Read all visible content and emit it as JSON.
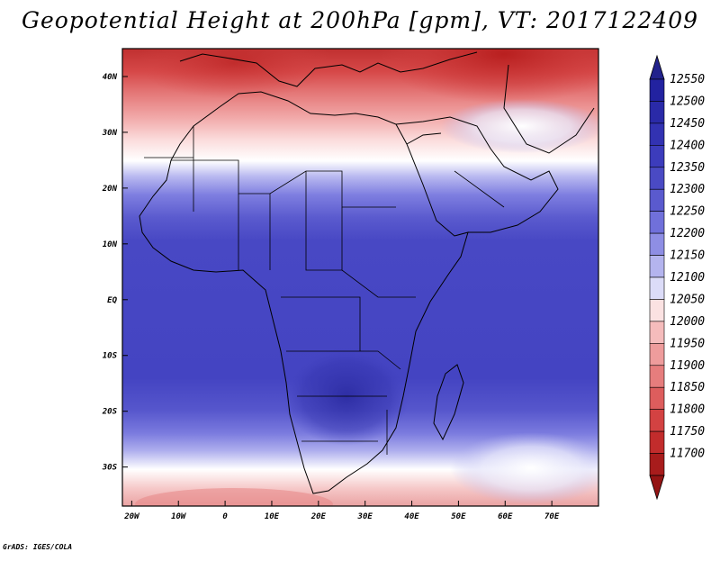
{
  "title": "Geopotential Height at 200hPa [gpm], VT: 2017122409",
  "credit": "GrADS: IGES/COLA",
  "map": {
    "lon_range": [
      -22,
      80
    ],
    "lat_range": [
      -37,
      45
    ],
    "lon_ticks": [
      {
        "lon": -20,
        "label": "20W"
      },
      {
        "lon": -10,
        "label": "10W"
      },
      {
        "lon": 0,
        "label": "0"
      },
      {
        "lon": 10,
        "label": "10E"
      },
      {
        "lon": 20,
        "label": "20E"
      },
      {
        "lon": 30,
        "label": "30E"
      },
      {
        "lon": 40,
        "label": "40E"
      },
      {
        "lon": 50,
        "label": "50E"
      },
      {
        "lon": 60,
        "label": "60E"
      },
      {
        "lon": 70,
        "label": "70E"
      }
    ],
    "lat_ticks": [
      {
        "lat": 40,
        "label": "40N"
      },
      {
        "lat": 30,
        "label": "30N"
      },
      {
        "lat": 20,
        "label": "20N"
      },
      {
        "lat": 10,
        "label": "10N"
      },
      {
        "lat": 0,
        "label": "EQ"
      },
      {
        "lat": -10,
        "label": "10S"
      },
      {
        "lat": -20,
        "label": "20S"
      },
      {
        "lat": -30,
        "label": "30S"
      }
    ]
  },
  "colorbar": {
    "levels": [
      {
        "label": "12550",
        "color": "#2222a0"
      },
      {
        "label": "12500",
        "color": "#2a2aa8"
      },
      {
        "label": "12450",
        "color": "#3232b2"
      },
      {
        "label": "12400",
        "color": "#3c3cbc"
      },
      {
        "label": "12350",
        "color": "#4a4ac4"
      },
      {
        "label": "12300",
        "color": "#5a5ace"
      },
      {
        "label": "12250",
        "color": "#7070da"
      },
      {
        "label": "12200",
        "color": "#8e8ee4"
      },
      {
        "label": "12150",
        "color": "#b4b4ee"
      },
      {
        "label": "12100",
        "color": "#dcdcf8"
      },
      {
        "label": "12050",
        "color": "#fbe2e2"
      },
      {
        "label": "12000",
        "color": "#f5bcbc"
      },
      {
        "label": "11950",
        "color": "#ee9c9c"
      },
      {
        "label": "11900",
        "color": "#e67d7d"
      },
      {
        "label": "11850",
        "color": "#dd5d5d"
      },
      {
        "label": "11800",
        "color": "#d34242"
      },
      {
        "label": "11750",
        "color": "#c22c2c"
      },
      {
        "label": "11700",
        "color": "#a81c1c"
      }
    ],
    "top_arrow_color": "#22228c",
    "bottom_arrow_color": "#941414"
  }
}
